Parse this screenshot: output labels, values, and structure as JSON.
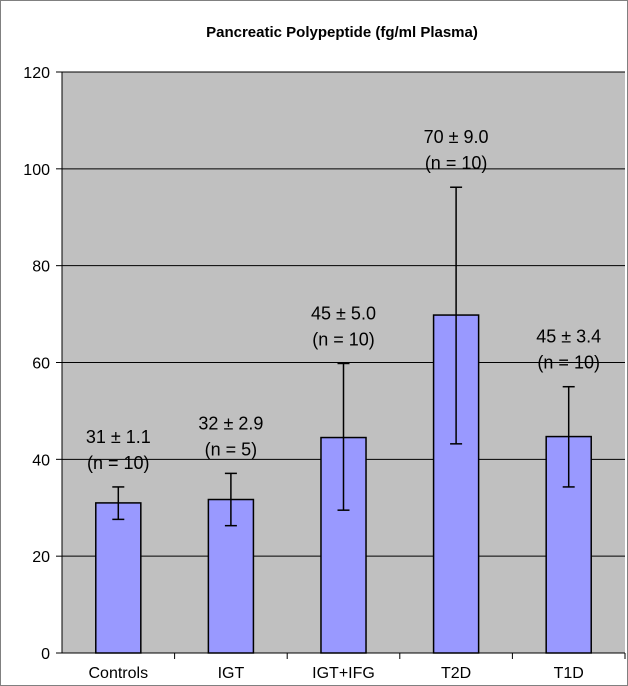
{
  "chart_data": {
    "type": "bar",
    "title": "Pancreatic Polypeptide  (fg/ml Plasma)",
    "xlabel": "",
    "ylabel": "",
    "ylim": [
      0,
      120
    ],
    "yticks": [
      0,
      20,
      40,
      60,
      80,
      100,
      120
    ],
    "grid": true,
    "legend": "none",
    "categories": [
      "Controls",
      "IGT",
      "IGT+IFG",
      "T2D",
      "T1D"
    ],
    "values": [
      31,
      31.7,
      44.5,
      69.8,
      44.7
    ],
    "error_low": [
      27.6,
      26.3,
      29.5,
      43.2,
      34.3
    ],
    "error_high": [
      34.3,
      37.1,
      59.8,
      96.2,
      55
    ],
    "value_labels": [
      "31 ± 1.1",
      "32 ± 2.9",
      "45 ± 5.0",
      "70 ± 9.0",
      "45 ± 3.4"
    ],
    "n_labels": [
      "(n = 10)",
      "(n = 5)",
      "(n = 10)",
      "(n = 10)",
      "(n = 10)"
    ],
    "colors": {
      "plot_bg": "#c0c0c0",
      "bar_fill": "#9999ff",
      "bar_stroke": "#000000",
      "grid": "#000000"
    }
  }
}
